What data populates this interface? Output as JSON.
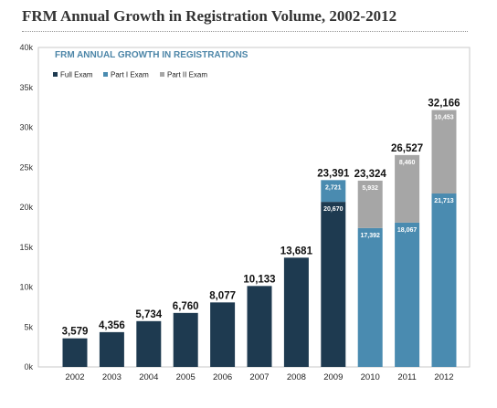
{
  "page": {
    "title": "FRM Annual Growth in Registration Volume, 2002-2012"
  },
  "chart_data": {
    "type": "bar",
    "stacked": true,
    "title": "FRM ANNUAL GROWTH IN REGISTRATIONS",
    "categories": [
      "2002",
      "2003",
      "2004",
      "2005",
      "2006",
      "2007",
      "2008",
      "2009",
      "2010",
      "2011",
      "2012"
    ],
    "series": [
      {
        "name": "Full Exam",
        "color": "#1e3a50",
        "values": [
          3579,
          4356,
          5734,
          6760,
          8077,
          10133,
          13681,
          20670,
          0,
          0,
          0
        ],
        "labels": [
          "",
          "",
          "",
          "",
          "",
          "",
          "",
          "20,670",
          "",
          "",
          ""
        ]
      },
      {
        "name": "Part I Exam",
        "color": "#4a8bb0",
        "values": [
          0,
          0,
          0,
          0,
          0,
          0,
          0,
          2721,
          17392,
          18067,
          21713
        ],
        "labels": [
          "",
          "",
          "",
          "",
          "",
          "",
          "",
          "2,721",
          "17,392",
          "18,067",
          "21,713"
        ]
      },
      {
        "name": "Part II Exam",
        "color": "#a6a6a6",
        "values": [
          0,
          0,
          0,
          0,
          0,
          0,
          0,
          0,
          5932,
          8460,
          10453
        ],
        "labels": [
          "",
          "",
          "",
          "",
          "",
          "",
          "",
          "",
          "5,932",
          "8,460",
          "10,453"
        ]
      }
    ],
    "totals": [
      3579,
      4356,
      5734,
      6760,
      8077,
      10133,
      13681,
      23391,
      23324,
      26527,
      32166
    ],
    "total_labels": [
      "3,579",
      "4,356",
      "5,734",
      "6,760",
      "8,077",
      "10,133",
      "13,681",
      "23,391",
      "23,324",
      "26,527",
      "32,166"
    ],
    "yticks": [
      0,
      5000,
      10000,
      15000,
      20000,
      25000,
      30000,
      35000,
      40000
    ],
    "ytick_labels": [
      "0k",
      "5k",
      "10k",
      "15k",
      "20k",
      "25k",
      "30k",
      "35k",
      "40k"
    ],
    "ylim": [
      0,
      40000
    ],
    "grid": false,
    "legend_position": "top-left"
  }
}
